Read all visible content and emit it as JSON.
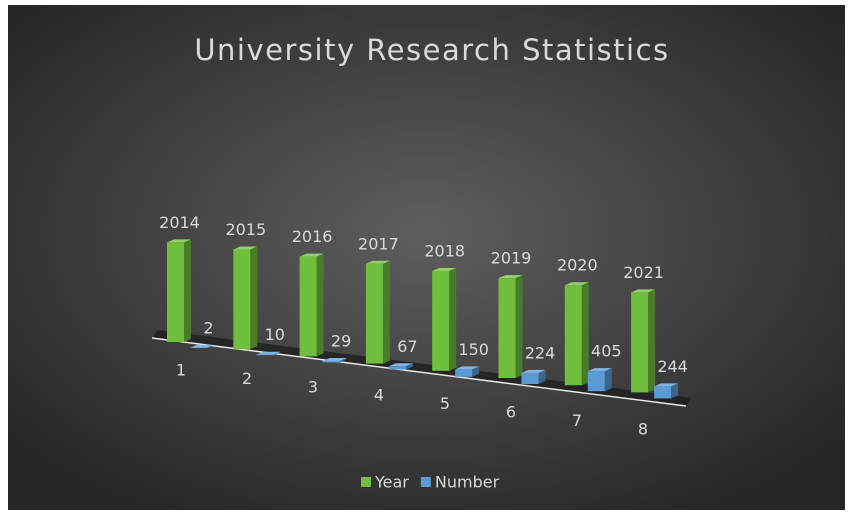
{
  "chart_data": {
    "type": "bar3d",
    "title": "University Research Statistics",
    "categories": [
      "1",
      "2",
      "3",
      "4",
      "5",
      "6",
      "7",
      "8"
    ],
    "series": [
      {
        "name": "Year",
        "color": "#70bf3c",
        "values": [
          2014,
          2015,
          2016,
          2017,
          2018,
          2019,
          2020,
          2021
        ]
      },
      {
        "name": "Number",
        "color": "#5b9bd5",
        "values": [
          2,
          10,
          29,
          67,
          150,
          224,
          405,
          244
        ]
      }
    ],
    "legend": "bottom"
  }
}
